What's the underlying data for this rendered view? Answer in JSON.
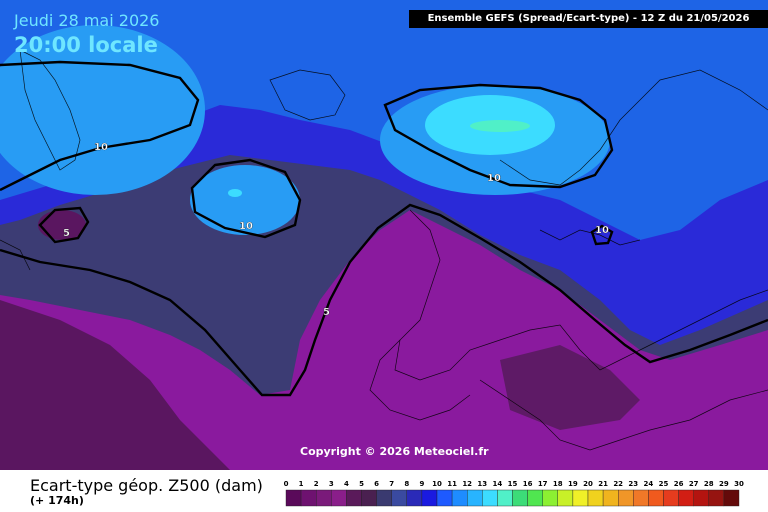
{
  "header": {
    "date": "Jeudi 28 mai 2026",
    "time": "20:00 locale",
    "model_info": "Ensemble GEFS  (Spread/Ecart-type) - 12 Z du 21/05/2026"
  },
  "copyright": "Copyright © 2026 Meteociel.fr",
  "footer": {
    "title": "Ecart-type géop. Z500 (dam)",
    "lead_time": "(+ 174h)"
  },
  "contour_labels": [
    "10",
    "10",
    "10",
    "10",
    "5",
    "5"
  ],
  "legend": {
    "ticks": [
      "0",
      "1",
      "2",
      "3",
      "4",
      "5",
      "6",
      "7",
      "8",
      "9",
      "10",
      "11",
      "12",
      "13",
      "14",
      "15",
      "16",
      "17",
      "18",
      "19",
      "20",
      "21",
      "22",
      "23",
      "24",
      "25",
      "26",
      "27",
      "28",
      "29",
      "30"
    ],
    "colors": [
      "#5a0a5a",
      "#6e1270",
      "#7a1a7a",
      "#8a1e8a",
      "#5a1a5a",
      "#4a2050",
      "#3a3a70",
      "#3a4aa0",
      "#2a2ab8",
      "#1a1ae0",
      "#1e5aff",
      "#1e8cff",
      "#28b4ff",
      "#3cdcff",
      "#50f0c8",
      "#3cdc78",
      "#50e650",
      "#8cf032",
      "#c8f028",
      "#f0f028",
      "#f0d21e",
      "#f0b41e",
      "#f09628",
      "#f07828",
      "#f05a1e",
      "#e63c1e",
      "#d21e14",
      "#b41410",
      "#961410",
      "#640a0a",
      "#000000"
    ]
  },
  "map": {
    "colors": {
      "spread_low": "#8a1a9e",
      "spread_very_low": "#5a1660",
      "spread_mid": "#3a3a70",
      "spread_blue": "#2828d8",
      "spread_light_blue": "#1e6ee6",
      "spread_cyan": "#28aaff",
      "spread_max": "#6affff"
    }
  }
}
